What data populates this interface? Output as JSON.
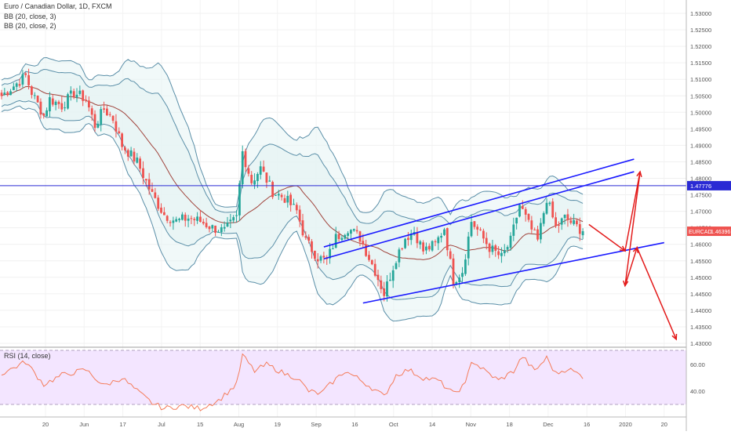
{
  "legend": {
    "symbol_title": "Euro / Canadian Dollar, 1D, FXCM",
    "bb1": "BB (20, close, 3)",
    "bb2": "BB (20, close, 2)"
  },
  "rsi_label": "RSI (14, close)",
  "colors": {
    "up": "#26a69a",
    "down": "#ef5350",
    "bb_band": "#5b8fa8",
    "bb_fill": "#e6f4f4",
    "basis": "#a0443c",
    "channel": "#1a1aff",
    "horizontal": "#2a2ad4",
    "forecast": "#e31a1a",
    "rsi_line": "#f47c5a",
    "rsi_bg": "#f3e5ff"
  },
  "price_axis": {
    "ticks": [
      "1.53000",
      "1.52500",
      "1.52000",
      "1.51500",
      "1.51000",
      "1.50500",
      "1.50000",
      "1.49500",
      "1.49000",
      "1.48500",
      "1.48000",
      "1.47500",
      "1.47000",
      "1.46500",
      "1.46000",
      "1.45500",
      "1.45000",
      "1.44500",
      "1.44000",
      "1.43500",
      "1.43000"
    ],
    "horizontal_label": "1.47776",
    "symbol_label": "EURCAD",
    "last_price": "1.46396"
  },
  "rsi_axis": {
    "ticks": [
      "60.00",
      "40.00"
    ]
  },
  "time_axis": [
    "20",
    "Jun",
    "17",
    "Jul",
    "15",
    "Aug",
    "19",
    "Sep",
    "16",
    "Oct",
    "14",
    "Nov",
    "18",
    "Dec",
    "16",
    "2020",
    "20"
  ],
  "chart_data": {
    "type": "candlestick",
    "title": "Euro / Canadian Dollar, 1D, FXCM",
    "ylim": [
      1.43,
      1.532
    ],
    "horizontal_line": 1.47776,
    "last_price": 1.46396,
    "anchors": [
      {
        "i": 0,
        "p": 1.505
      },
      {
        "i": 4,
        "p": 1.508
      },
      {
        "i": 8,
        "p": 1.511
      },
      {
        "i": 10,
        "p": 1.506
      },
      {
        "i": 14,
        "p": 1.499
      },
      {
        "i": 16,
        "p": 1.504
      },
      {
        "i": 20,
        "p": 1.502
      },
      {
        "i": 24,
        "p": 1.506
      },
      {
        "i": 28,
        "p": 1.504
      },
      {
        "i": 31,
        "p": 1.496
      },
      {
        "i": 34,
        "p": 1.501
      },
      {
        "i": 37,
        "p": 1.498
      },
      {
        "i": 40,
        "p": 1.49
      },
      {
        "i": 45,
        "p": 1.485
      },
      {
        "i": 50,
        "p": 1.475
      },
      {
        "i": 54,
        "p": 1.469
      },
      {
        "i": 58,
        "p": 1.467
      },
      {
        "i": 62,
        "p": 1.468
      },
      {
        "i": 66,
        "p": 1.467
      },
      {
        "i": 70,
        "p": 1.465
      },
      {
        "i": 74,
        "p": 1.464
      },
      {
        "i": 78,
        "p": 1.468
      },
      {
        "i": 80,
        "p": 1.488
      },
      {
        "i": 83,
        "p": 1.479
      },
      {
        "i": 86,
        "p": 1.483
      },
      {
        "i": 90,
        "p": 1.476
      },
      {
        "i": 94,
        "p": 1.474
      },
      {
        "i": 98,
        "p": 1.47
      },
      {
        "i": 101,
        "p": 1.461
      },
      {
        "i": 105,
        "p": 1.456
      },
      {
        "i": 108,
        "p": 1.455
      },
      {
        "i": 111,
        "p": 1.462
      },
      {
        "i": 115,
        "p": 1.465
      },
      {
        "i": 119,
        "p": 1.462
      },
      {
        "i": 124,
        "p": 1.452
      },
      {
        "i": 127,
        "p": 1.445
      },
      {
        "i": 131,
        "p": 1.456
      },
      {
        "i": 134,
        "p": 1.462
      },
      {
        "i": 137,
        "p": 1.464
      },
      {
        "i": 140,
        "p": 1.458
      },
      {
        "i": 144,
        "p": 1.46
      },
      {
        "i": 147,
        "p": 1.465
      },
      {
        "i": 150,
        "p": 1.449
      },
      {
        "i": 153,
        "p": 1.452
      },
      {
        "i": 156,
        "p": 1.467
      },
      {
        "i": 159,
        "p": 1.463
      },
      {
        "i": 162,
        "p": 1.459
      },
      {
        "i": 166,
        "p": 1.456
      },
      {
        "i": 169,
        "p": 1.461
      },
      {
        "i": 172,
        "p": 1.472
      },
      {
        "i": 175,
        "p": 1.466
      },
      {
        "i": 178,
        "p": 1.461
      },
      {
        "i": 181,
        "p": 1.474
      },
      {
        "i": 184,
        "p": 1.465
      },
      {
        "i": 187,
        "p": 1.468
      },
      {
        "i": 190,
        "p": 1.466
      },
      {
        "i": 193,
        "p": 1.464
      }
    ],
    "rsi_anchors": [
      {
        "i": 0,
        "v": 53
      },
      {
        "i": 8,
        "v": 62
      },
      {
        "i": 14,
        "v": 45
      },
      {
        "i": 20,
        "v": 52
      },
      {
        "i": 28,
        "v": 56
      },
      {
        "i": 34,
        "v": 44
      },
      {
        "i": 40,
        "v": 50
      },
      {
        "i": 45,
        "v": 40
      },
      {
        "i": 50,
        "v": 31
      },
      {
        "i": 54,
        "v": 27
      },
      {
        "i": 60,
        "v": 29
      },
      {
        "i": 66,
        "v": 27
      },
      {
        "i": 72,
        "v": 33
      },
      {
        "i": 78,
        "v": 45
      },
      {
        "i": 80,
        "v": 67
      },
      {
        "i": 84,
        "v": 55
      },
      {
        "i": 88,
        "v": 60
      },
      {
        "i": 94,
        "v": 53
      },
      {
        "i": 98,
        "v": 50
      },
      {
        "i": 102,
        "v": 40
      },
      {
        "i": 106,
        "v": 38
      },
      {
        "i": 110,
        "v": 47
      },
      {
        "i": 114,
        "v": 55
      },
      {
        "i": 118,
        "v": 50
      },
      {
        "i": 122,
        "v": 44
      },
      {
        "i": 127,
        "v": 36
      },
      {
        "i": 131,
        "v": 52
      },
      {
        "i": 135,
        "v": 56
      },
      {
        "i": 140,
        "v": 50
      },
      {
        "i": 145,
        "v": 48
      },
      {
        "i": 150,
        "v": 38
      },
      {
        "i": 154,
        "v": 45
      },
      {
        "i": 156,
        "v": 63
      },
      {
        "i": 160,
        "v": 56
      },
      {
        "i": 165,
        "v": 48
      },
      {
        "i": 170,
        "v": 55
      },
      {
        "i": 173,
        "v": 66
      },
      {
        "i": 177,
        "v": 55
      },
      {
        "i": 181,
        "v": 65
      },
      {
        "i": 184,
        "v": 53
      },
      {
        "i": 188,
        "v": 57
      },
      {
        "i": 193,
        "v": 51
      }
    ],
    "channel_upper": [
      [
        107,
        1.4592
      ],
      [
        210,
        1.4858
      ]
    ],
    "channel_upper_inner": [
      [
        107,
        1.4556
      ],
      [
        210,
        1.482
      ]
    ],
    "channel_lower": [
      [
        120,
        1.4422
      ],
      [
        220,
        1.4605
      ]
    ],
    "forecast_path": [
      [
        195,
        1.466
      ],
      [
        207,
        1.458
      ],
      [
        212,
        1.482
      ],
      [
        207,
        1.4474
      ],
      [
        211,
        1.459
      ],
      [
        224,
        1.4312
      ]
    ]
  }
}
